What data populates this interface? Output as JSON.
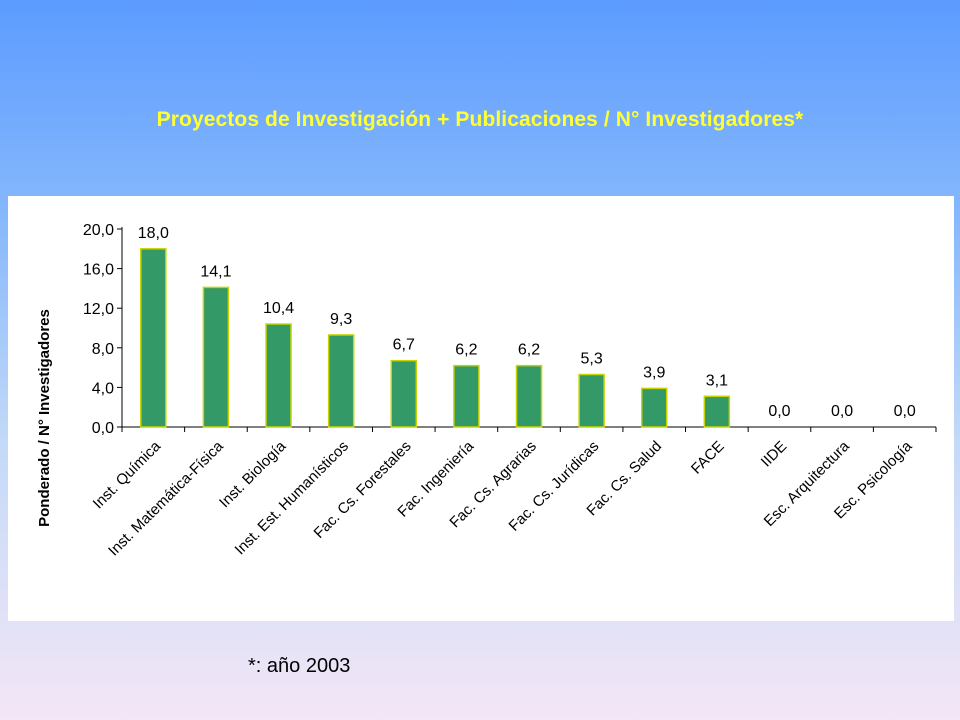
{
  "title": "Proyectos de Investigación + Publicaciones / N° Investigadores*",
  "footnote": "*: año 2003",
  "chart_data": {
    "type": "bar",
    "title": "",
    "xlabel": "",
    "ylabel": "Ponderado / N° Investigadores",
    "ylim": [
      0,
      20
    ],
    "yticks": [
      "0,0",
      "4,0",
      "8,0",
      "12,0",
      "16,0",
      "20,0"
    ],
    "categories": [
      "Inst. Química",
      "Inst. Matemática-Física",
      "Inst. Biología",
      "Inst. Est. Humanísticos",
      "Fac. Cs. Forestales",
      "Fac. Ingeniería",
      "Fac. Cs. Agrarias",
      "Fac. Cs. Jurídicas",
      "Fac. Cs. Salud",
      "FACE",
      "IIDE",
      "Esc. Arquitectura",
      "Esc. Psicología"
    ],
    "values": [
      18.0,
      14.1,
      10.4,
      9.3,
      6.7,
      6.2,
      6.2,
      5.3,
      3.9,
      3.1,
      0.0,
      0.0,
      0.0
    ],
    "data_labels": [
      "18,0",
      "14,1",
      "10,4",
      "9,3",
      "6,7",
      "6,2",
      "6,2",
      "5,3",
      "3,9",
      "3,1",
      "0,0",
      "0,0",
      "0,0"
    ],
    "bar_color": "#339966",
    "bar_border_color": "#c8d400",
    "grid": false,
    "legend": "none"
  }
}
